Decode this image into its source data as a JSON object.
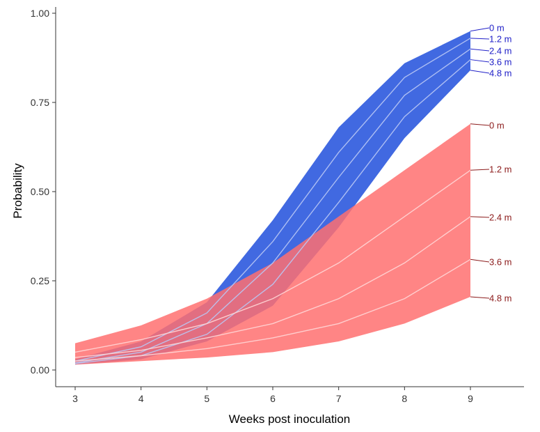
{
  "chart_data": {
    "type": "area",
    "title": "",
    "xlabel": "Weeks post inoculation",
    "ylabel": "Probability",
    "xlim": [
      2.7,
      9.8
    ],
    "ylim": [
      0,
      1.0
    ],
    "x_ticks": [
      3,
      4,
      5,
      6,
      7,
      8,
      9
    ],
    "x_tick_labels": [
      "3",
      "4",
      "5",
      "6",
      "7",
      "8",
      "9"
    ],
    "y_ticks": [
      0,
      0.25,
      0.5,
      0.75,
      1.0
    ],
    "y_tick_labels": [
      "0.00",
      "0.25",
      "0.50",
      "0.75",
      "1.00"
    ],
    "grid": false,
    "legend": "none",
    "x": [
      3,
      4,
      5,
      6,
      7,
      8,
      9
    ],
    "groups": [
      {
        "color": "#4169e1",
        "line_color": "#b9c8f5",
        "label_color": "#2020c8",
        "series": [
          {
            "name": "0 m",
            "values": [
              0.03,
              0.08,
              0.19,
              0.42,
              0.68,
              0.86,
              0.95
            ]
          },
          {
            "name": "1.2 m",
            "values": [
              0.025,
              0.065,
              0.16,
              0.36,
              0.61,
              0.82,
              0.93
            ]
          },
          {
            "name": "2.4 m",
            "values": [
              0.02,
              0.05,
              0.13,
              0.3,
              0.54,
              0.77,
              0.9
            ]
          },
          {
            "name": "3.6 m",
            "values": [
              0.018,
              0.04,
              0.1,
              0.24,
              0.47,
              0.71,
              0.87
            ]
          },
          {
            "name": "4.8 m",
            "values": [
              0.015,
              0.03,
              0.08,
              0.18,
              0.4,
              0.65,
              0.84
            ]
          }
        ]
      },
      {
        "color": "#ff7070",
        "line_color": "#ffd6d6",
        "label_color": "#8b1a1a",
        "series": [
          {
            "name": "0 m",
            "values": [
              0.075,
              0.125,
              0.2,
              0.3,
              0.43,
              0.56,
              0.69
            ]
          },
          {
            "name": "1.2 m",
            "values": [
              0.05,
              0.085,
              0.13,
              0.2,
              0.3,
              0.43,
              0.56
            ]
          },
          {
            "name": "2.4 m",
            "values": [
              0.035,
              0.055,
              0.09,
              0.13,
              0.2,
              0.3,
              0.43
            ]
          },
          {
            "name": "3.6 m",
            "values": [
              0.025,
              0.04,
              0.06,
              0.09,
              0.13,
              0.2,
              0.31
            ]
          },
          {
            "name": "4.8 m",
            "values": [
              0.015,
              0.025,
              0.035,
              0.05,
              0.08,
              0.13,
              0.205
            ]
          }
        ]
      }
    ]
  }
}
